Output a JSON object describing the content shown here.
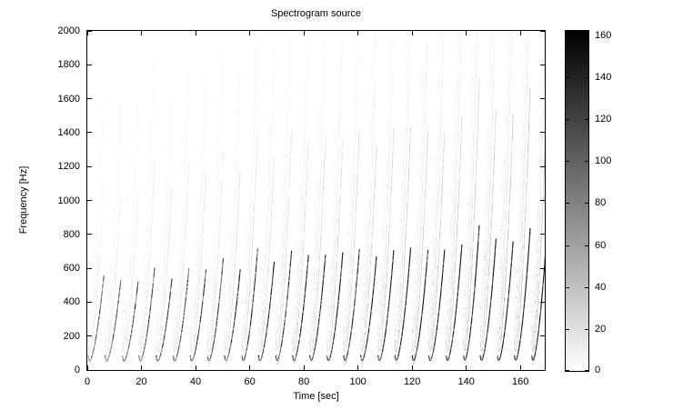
{
  "figure": {
    "background": "#ffffff",
    "axis_color": "#000000",
    "text_color": "#000000"
  },
  "chart_data": {
    "type": "heatmap",
    "subtype": "spectrogram",
    "title": "Spectrogram source",
    "xlabel": "Time [sec]",
    "ylabel": "Frequency [Hz]",
    "xlim": [
      0,
      169
    ],
    "ylim": [
      0,
      2000
    ],
    "x_ticks": [
      0,
      20,
      40,
      60,
      80,
      100,
      120,
      140,
      160
    ],
    "y_ticks": [
      0,
      200,
      400,
      600,
      800,
      1000,
      1200,
      1400,
      1600,
      1800,
      2000
    ],
    "grid": false,
    "legend": "none",
    "colormap": "reversed-gray (0 = white, max = black)",
    "colorbar": {
      "min": 0,
      "max": 162,
      "ticks": [
        0,
        20,
        40,
        60,
        80,
        100,
        120,
        140,
        160
      ],
      "position": "right"
    },
    "content_model": {
      "description": "About 27 repeated upward-sweeping harmonic chirps (fan of rising harmonics each event); strongest energy 50-900 Hz; intensity and bandwidth gradually increase over time; faint steep harmonic streaks reach 2000 Hz",
      "num_events": 27,
      "period_sec": 6.3,
      "first_onset_sec": 0.25,
      "chirp": {
        "f0_start_hz": 35,
        "onset_dip_hz": 60,
        "f0_end_hz_first": 560,
        "f0_end_hz_last": 840,
        "duration_sec": 5.9,
        "curve_power": 1.75
      },
      "harmonics": {
        "count": 26,
        "amplitude_rolloff_exp": 1.55,
        "fundamental_boost": 1.7
      },
      "gain_first": 0.55,
      "gain_last": 1.05,
      "hf_rolloff_hz_first": 700,
      "hf_rolloff_hz_last": 1700,
      "noise_speckles": 3800,
      "seed": 42
    }
  }
}
